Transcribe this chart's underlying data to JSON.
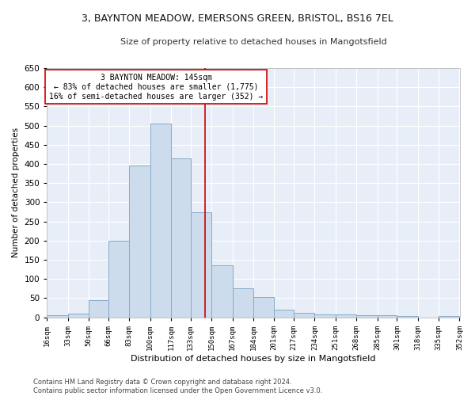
{
  "title": "3, BAYNTON MEADOW, EMERSONS GREEN, BRISTOL, BS16 7EL",
  "subtitle": "Size of property relative to detached houses in Mangotsfield",
  "xlabel": "Distribution of detached houses by size in Mangotsfield",
  "ylabel": "Number of detached properties",
  "bar_color": "#ccdcec",
  "bar_edge_color": "#88aac8",
  "background_color": "#e8eef8",
  "grid_color": "#ffffff",
  "vline_x": 145,
  "vline_color": "#cc0000",
  "annotation_text": "3 BAYNTON MEADOW: 145sqm\n← 83% of detached houses are smaller (1,775)\n16% of semi-detached houses are larger (352) →",
  "annotation_box_color": "#ffffff",
  "annotation_box_edge": "#cc0000",
  "bins": [
    16,
    33,
    50,
    66,
    83,
    100,
    117,
    133,
    150,
    167,
    184,
    201,
    217,
    234,
    251,
    268,
    285,
    301,
    318,
    335,
    352
  ],
  "counts": [
    5,
    10,
    45,
    200,
    395,
    505,
    415,
    275,
    135,
    75,
    52,
    20,
    12,
    8,
    8,
    5,
    5,
    3,
    0,
    3
  ],
  "ylim": [
    0,
    650
  ],
  "yticks": [
    0,
    50,
    100,
    150,
    200,
    250,
    300,
    350,
    400,
    450,
    500,
    550,
    600,
    650
  ],
  "footer_text": "Contains HM Land Registry data © Crown copyright and database right 2024.\nContains public sector information licensed under the Open Government Licence v3.0.",
  "figsize": [
    6.0,
    5.0
  ],
  "dpi": 100
}
